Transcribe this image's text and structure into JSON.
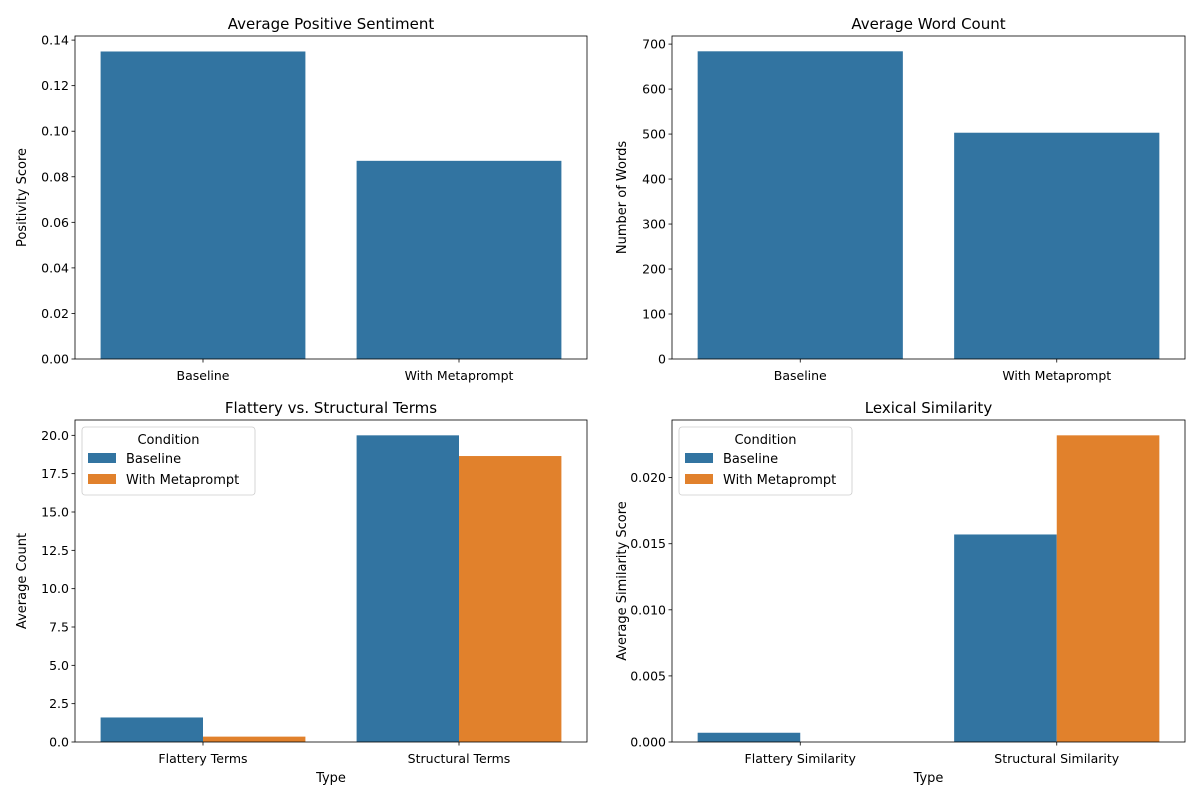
{
  "colors": {
    "baseline": "#3274a1",
    "metaprompt": "#e1812c"
  },
  "chart_data": [
    {
      "type": "bar",
      "title": "Average Positive Sentiment",
      "xlabel": "",
      "ylabel": "Positivity Score",
      "categories": [
        "Baseline",
        "With Metaprompt"
      ],
      "values": [
        0.135,
        0.087
      ],
      "ylim": [
        0,
        0.1418
      ],
      "yticks": [
        0,
        0.02,
        0.04,
        0.06,
        0.08,
        0.1,
        0.12,
        0.14
      ],
      "ytick_labels": [
        "0.00",
        "0.02",
        "0.04",
        "0.06",
        "0.08",
        "0.10",
        "0.12",
        "0.14"
      ]
    },
    {
      "type": "bar",
      "title": "Average Word Count",
      "xlabel": "",
      "ylabel": "Number of Words",
      "categories": [
        "Baseline",
        "With Metaprompt"
      ],
      "values": [
        684,
        503
      ],
      "ylim": [
        0,
        718
      ],
      "yticks": [
        0,
        100,
        200,
        300,
        400,
        500,
        600,
        700
      ],
      "ytick_labels": [
        "0",
        "100",
        "200",
        "300",
        "400",
        "500",
        "600",
        "700"
      ]
    },
    {
      "type": "bar",
      "title": "Flattery vs. Structural Terms",
      "xlabel": "Type",
      "ylabel": "Average Count",
      "categories": [
        "Flattery Terms",
        "Structural Terms"
      ],
      "series": [
        {
          "name": "Baseline",
          "values": [
            1.6,
            20.0
          ]
        },
        {
          "name": "With Metaprompt",
          "values": [
            0.35,
            18.65
          ]
        }
      ],
      "legend": {
        "title": "Condition",
        "placement": "top-left"
      },
      "ylim": [
        0,
        21.0
      ],
      "yticks": [
        0,
        2.5,
        5,
        7.5,
        10,
        12.5,
        15,
        17.5,
        20
      ],
      "ytick_labels": [
        "0.0",
        "2.5",
        "5.0",
        "7.5",
        "10.0",
        "12.5",
        "15.0",
        "17.5",
        "20.0"
      ]
    },
    {
      "type": "bar",
      "title": "Lexical Similarity",
      "xlabel": "Type",
      "ylabel": "Average Similarity Score",
      "categories": [
        "Flattery Similarity",
        "Structural Similarity"
      ],
      "series": [
        {
          "name": "Baseline",
          "values": [
            0.0007,
            0.0157
          ]
        },
        {
          "name": "With Metaprompt",
          "values": [
            0.0,
            0.0232
          ]
        }
      ],
      "legend": {
        "title": "Condition",
        "placement": "top-left"
      },
      "ylim": [
        0,
        0.02436
      ],
      "yticks": [
        0,
        0.005,
        0.01,
        0.015,
        0.02
      ],
      "ytick_labels": [
        "0.000",
        "0.005",
        "0.010",
        "0.015",
        "0.020"
      ]
    }
  ]
}
